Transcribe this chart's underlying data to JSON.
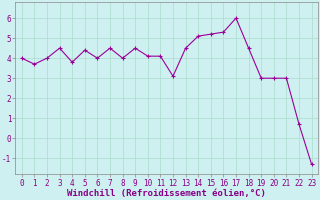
{
  "x": [
    0,
    1,
    2,
    3,
    4,
    5,
    6,
    7,
    8,
    9,
    10,
    11,
    12,
    13,
    14,
    15,
    16,
    17,
    18,
    19,
    20,
    21,
    22,
    23
  ],
  "y": [
    4.0,
    3.7,
    4.0,
    4.5,
    3.8,
    4.4,
    4.0,
    4.5,
    4.0,
    4.5,
    4.1,
    4.1,
    3.1,
    4.5,
    5.1,
    5.2,
    5.3,
    6.0,
    4.5,
    3.0,
    3.0,
    3.0,
    0.7,
    -1.3
  ],
  "line_color": "#990099",
  "marker": "+",
  "marker_size": 3,
  "line_width": 0.8,
  "bg_color": "#cff0f0",
  "grid_color": "#aaddcc",
  "xlabel": "Windchill (Refroidissement éolien,°C)",
  "xlabel_fontsize": 6.5,
  "tick_fontsize": 5.5,
  "ylim": [
    -1.8,
    6.8
  ],
  "yticks": [
    -1,
    0,
    1,
    2,
    3,
    4,
    5,
    6
  ],
  "xticks": [
    0,
    1,
    2,
    3,
    4,
    5,
    6,
    7,
    8,
    9,
    10,
    11,
    12,
    13,
    14,
    15,
    16,
    17,
    18,
    19,
    20,
    21,
    22,
    23
  ],
  "xlabel_bold": true,
  "spine_color": "#888888"
}
